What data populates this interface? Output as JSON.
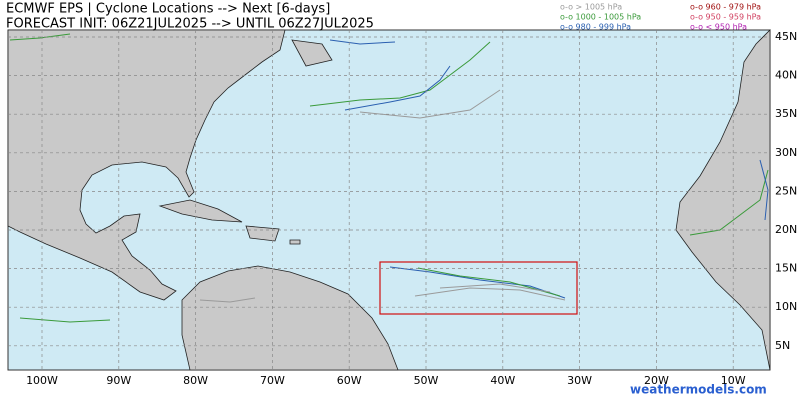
{
  "header": {
    "title": "ECMWF EPS | Cyclone Locations --> Next [6-days]",
    "subtitle": "FORECAST INIT: 06Z21JUL2025 --> UNTIL 06Z27JUL2025"
  },
  "legend": [
    {
      "label": "o-o > 1005 hPa",
      "color": "#9a9a9a"
    },
    {
      "label": "o-o 1000 - 1005 hPa",
      "color": "#3a9a3a"
    },
    {
      "label": "o-o 980 - 999 hPa",
      "color": "#2a5fb0"
    },
    {
      "label": "o-o 960 - 979 hPa",
      "color": "#a01010"
    },
    {
      "label": "o-o 950 - 959 hPa",
      "color": "#d04060"
    },
    {
      "label": "o-o < 950 hPa",
      "color": "#b020b0"
    }
  ],
  "map": {
    "lat_labels": [
      "45N",
      "40N",
      "35N",
      "30N",
      "25N",
      "20N",
      "15N",
      "10N",
      "5N"
    ],
    "lon_labels": [
      "100W",
      "90W",
      "80W",
      "70W",
      "60W",
      "50W",
      "40W",
      "30W",
      "20W",
      "10W"
    ]
  },
  "watermark": "weathermodels.com"
}
